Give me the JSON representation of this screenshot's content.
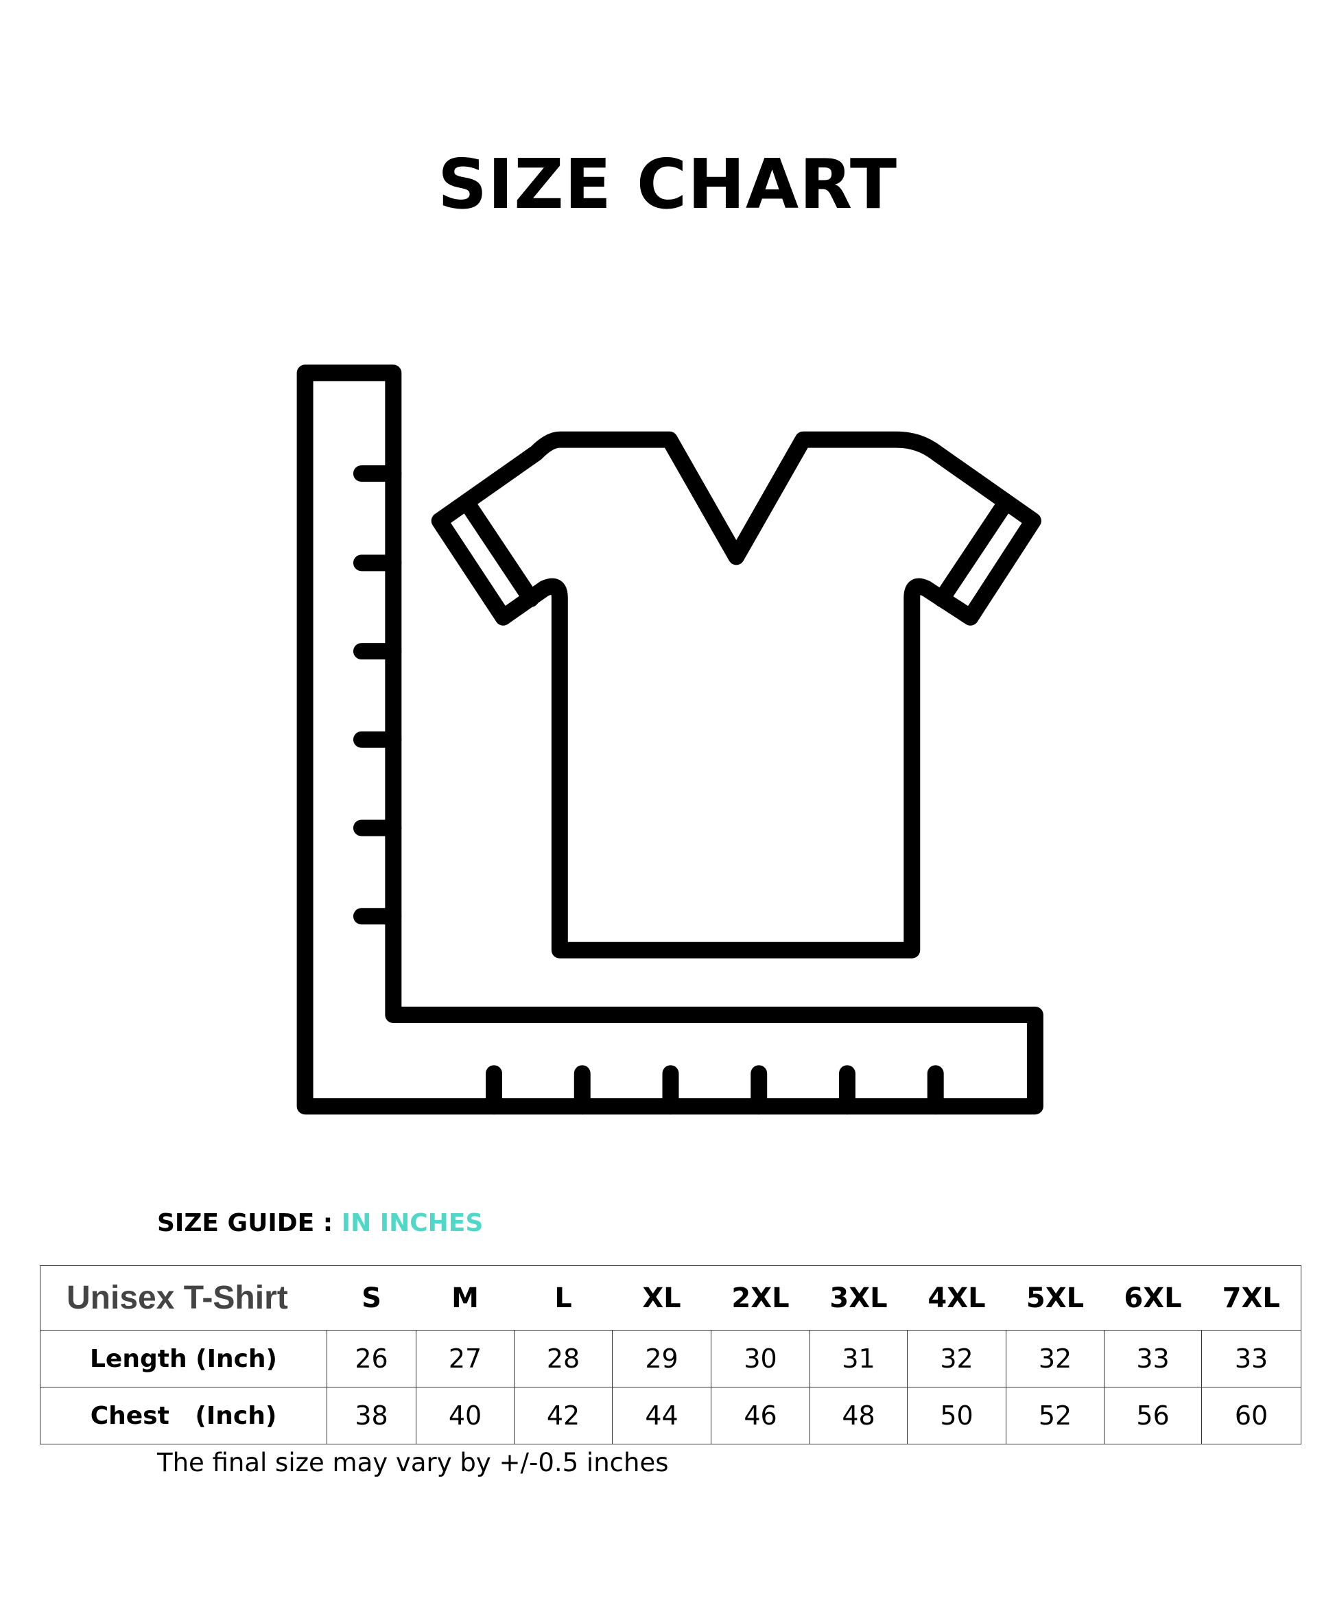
{
  "title": "SIZE CHART",
  "icon": "ruler-tshirt-icon",
  "guide": {
    "label": "SIZE GUIDE : ",
    "unit": "IN INCHES",
    "unit_color": "#4fd8c8"
  },
  "table": {
    "header": "Unisex T-Shirt",
    "sizes": [
      "S",
      "M",
      "L",
      "XL",
      "2XL",
      "3XL",
      "4XL",
      "5XL",
      "6XL",
      "7XL"
    ],
    "rows": [
      {
        "label": "Length (Inch)",
        "values": [
          "26",
          "27",
          "28",
          "29",
          "30",
          "31",
          "32",
          "32",
          "33",
          "33"
        ]
      },
      {
        "label": "Chest   (Inch)",
        "values": [
          "38",
          "40",
          "42",
          "44",
          "46",
          "48",
          "50",
          "52",
          "56",
          "60"
        ]
      }
    ]
  },
  "note": "The final size may vary by +/-0.5 inches"
}
